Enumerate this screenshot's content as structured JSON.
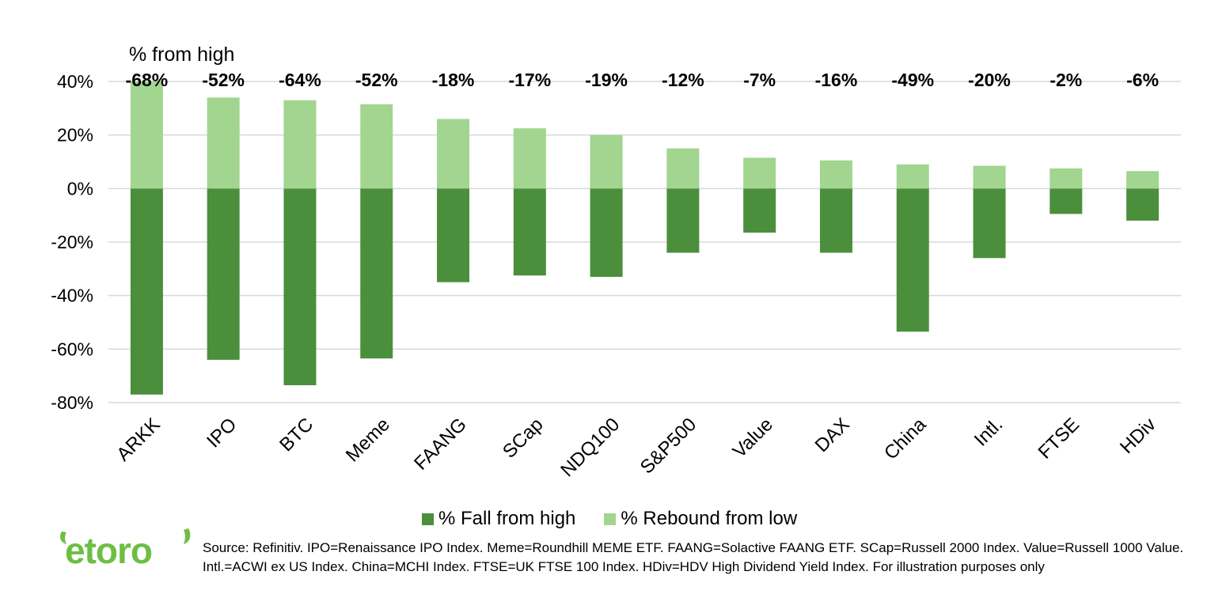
{
  "chart_data": {
    "type": "bar",
    "stacked": true,
    "title": "% from high",
    "categories": [
      "ARKK",
      "IPO",
      "BTC",
      "Meme",
      "FAANG",
      "SCap",
      "NDQ100",
      "S&P500",
      "Value",
      "DAX",
      "China",
      "Intl.",
      "FTSE",
      "HDiv"
    ],
    "series": [
      {
        "name": "% Fall from high",
        "color": "#4b8f3c",
        "values": [
          -77,
          -64,
          -73.5,
          -63.5,
          -35,
          -32.5,
          -33,
          -24,
          -16.5,
          -24,
          -53.5,
          -26,
          -9.5,
          -12
        ]
      },
      {
        "name": "% Rebound from low",
        "color": "#a2d590",
        "values": [
          40,
          34,
          33,
          31.5,
          26,
          22.5,
          20,
          15,
          11.5,
          10.5,
          9,
          8.5,
          7.5,
          6.5
        ]
      }
    ],
    "top_labels": [
      "-68%",
      "-52%",
      "-64%",
      "-52%",
      "-18%",
      "-17%",
      "-19%",
      "-12%",
      "-7%",
      "-16%",
      "-49%",
      "-20%",
      "-2%",
      "-6%"
    ],
    "yticks": [
      40,
      20,
      0,
      -20,
      -40,
      -60,
      -80
    ],
    "ytick_labels": [
      "40%",
      "20%",
      "0%",
      "-20%",
      "-40%",
      "-60%",
      "-80%"
    ],
    "ylim": [
      -80,
      40
    ],
    "grid": true,
    "legend_position": "bottom"
  },
  "logo": {
    "text": "etoro",
    "color": "#6ebe44"
  },
  "source_text": "Source: Refinitiv. IPO=Renaissance IPO Index. Meme=Roundhill MEME ETF. FAANG=Solactive FAANG ETF. SCap=Russell 2000 Index. Value=Russell 1000 Value. Intl.=ACWI ex US Index. China=MCHI Index. FTSE=UK FTSE 100 Index. HDiv=HDV High Dividend Yield Index. For illustration purposes only"
}
